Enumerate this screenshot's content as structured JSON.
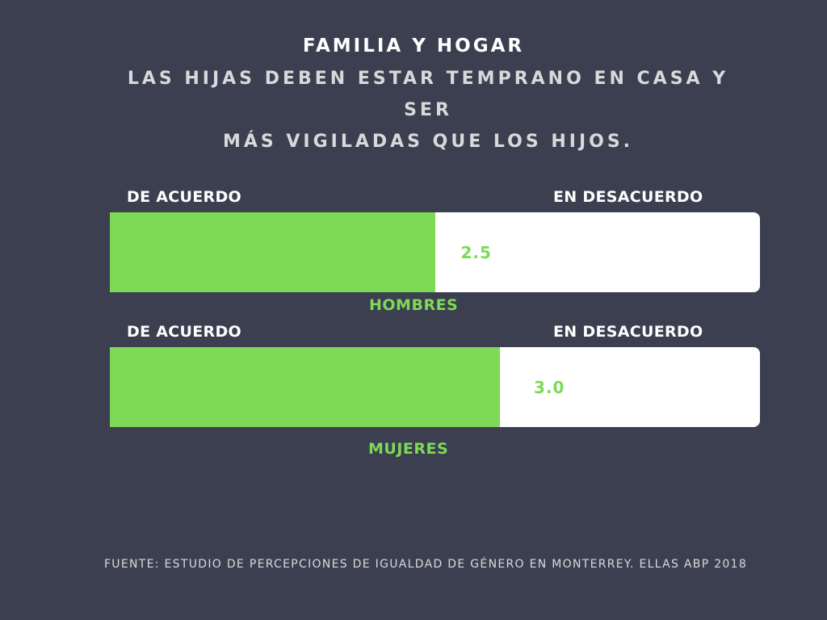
{
  "colors": {
    "background": "#3b3f50",
    "bar_fill": "#7ed957",
    "bar_track": "#ffffff"
  },
  "chart_data": {
    "type": "bar",
    "orientation": "horizontal",
    "title": "FAMILIA Y HOGAR",
    "subtitle_lines": [
      "LAS HIJAS DEBEN ESTAR TEMPRANO EN CASA Y SER",
      "MÁS VIGILADAS QUE LOS HIJOS."
    ],
    "scale_min": 0,
    "scale_max": 5,
    "categories": [
      "HOMBRES",
      "MUJERES"
    ],
    "values": [
      2.5,
      3.0
    ],
    "value_labels": [
      "2.5",
      "3.0"
    ],
    "left_label": "DE ACUERDO",
    "right_label": "EN DESACUERDO",
    "source": "FUENTE: ESTUDIO DE PERCEPCIONES DE IGUALDAD DE GÉNERO EN MONTERREY. ELLAS ABP 2018"
  }
}
